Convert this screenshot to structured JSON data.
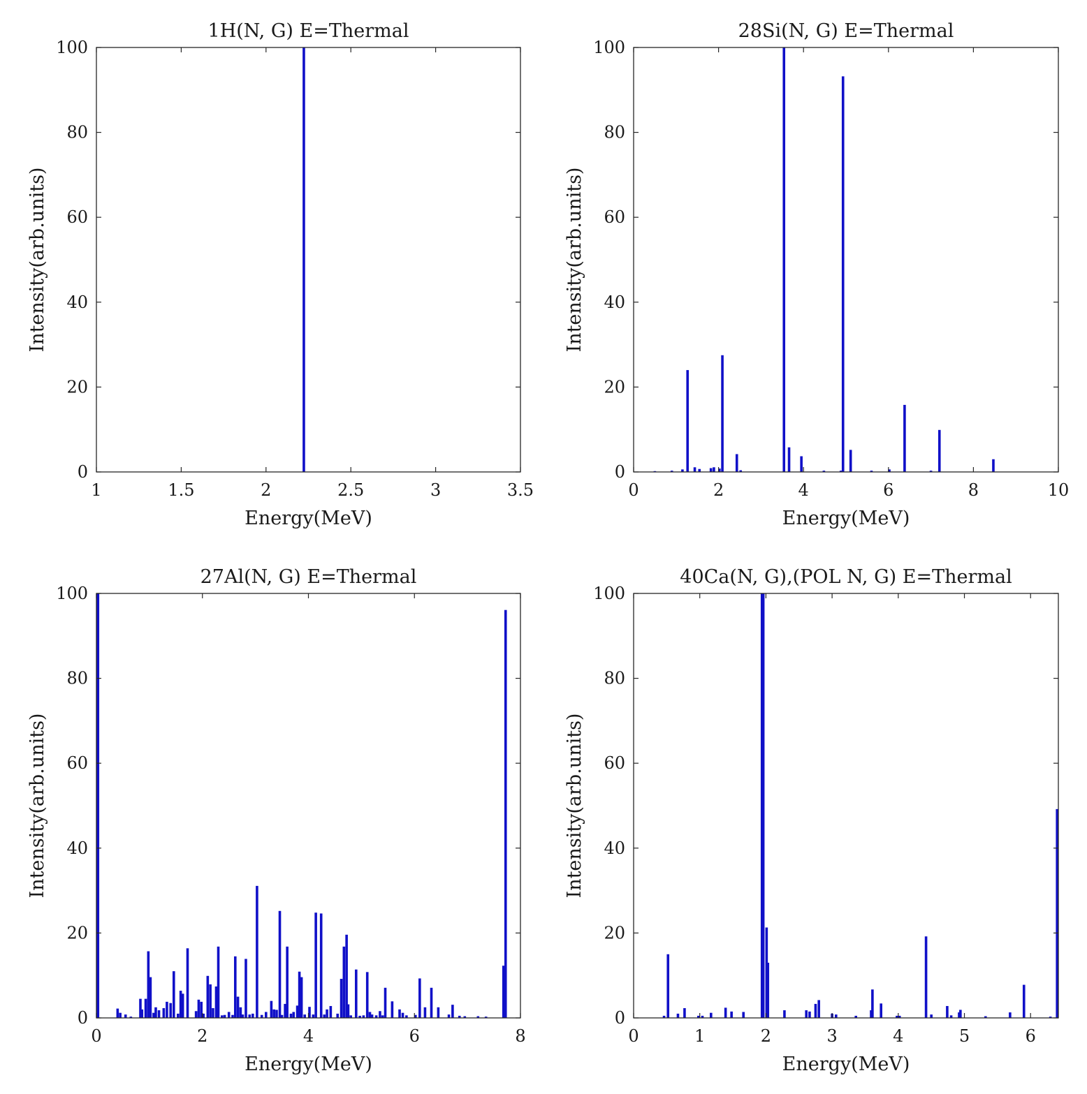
{
  "colors": {
    "bar": "#1010c8",
    "axis": "#262626"
  },
  "chart_data": [
    {
      "type": "bar",
      "title": "1H(N, G) E=Thermal",
      "xlabel": "Energy(MeV)",
      "ylabel": "Intensity(arb.units)",
      "xlim": [
        1,
        3.5
      ],
      "ylim": [
        0,
        100
      ],
      "xticks": [
        "1",
        "1.5",
        "2",
        "2.5",
        "3",
        "3.5"
      ],
      "yticks": [
        "0",
        "20",
        "40",
        "60",
        "80",
        "100"
      ],
      "x": [
        2.223
      ],
      "values": [
        100
      ]
    },
    {
      "type": "bar",
      "title": "28Si(N, G) E=Thermal",
      "xlabel": "Energy(MeV)",
      "ylabel": "Intensity(arb.units)",
      "xlim": [
        0,
        10
      ],
      "ylim": [
        0,
        100
      ],
      "xticks": [
        "0",
        "2",
        "4",
        "6",
        "8",
        "10"
      ],
      "yticks": [
        "0",
        "20",
        "40",
        "60",
        "80",
        "100"
      ],
      "x": [
        0.5,
        0.9,
        1.15,
        1.27,
        1.44,
        1.55,
        1.82,
        1.89,
        2.02,
        2.09,
        2.43,
        2.52,
        3.54,
        3.66,
        3.95,
        4.48,
        4.88,
        4.93,
        5.11,
        5.6,
        6.02,
        6.38,
        7.0,
        7.2,
        8.47
      ],
      "values": [
        0.2,
        0.3,
        0.6,
        24,
        1.1,
        0.7,
        0.9,
        1.1,
        0.8,
        27.5,
        4.2,
        0.4,
        100,
        5.8,
        3.7,
        0.3,
        0.3,
        93.2,
        5.2,
        0.3,
        0.6,
        15.8,
        0.3,
        9.9,
        3.0
      ]
    },
    {
      "type": "bar",
      "title": "27Al(N, G) E=Thermal",
      "xlabel": "Energy(MeV)",
      "ylabel": "Intensity(arb.units)",
      "xlim": [
        0,
        8
      ],
      "ylim": [
        0,
        100
      ],
      "xticks": [
        "0",
        "2",
        "4",
        "6",
        "8"
      ],
      "yticks": [
        "0",
        "20",
        "40",
        "60",
        "80",
        "100"
      ],
      "x": [
        0.03,
        0.4,
        0.45,
        0.55,
        0.65,
        0.83,
        0.86,
        0.93,
        0.98,
        1.02,
        1.08,
        1.12,
        1.18,
        1.27,
        1.33,
        1.4,
        1.46,
        1.54,
        1.59,
        1.63,
        1.72,
        1.88,
        1.93,
        1.98,
        2.02,
        2.1,
        2.15,
        2.2,
        2.26,
        2.3,
        2.37,
        2.42,
        2.5,
        2.57,
        2.62,
        2.67,
        2.72,
        2.76,
        2.82,
        2.89,
        2.95,
        3.03,
        3.12,
        3.2,
        3.3,
        3.35,
        3.4,
        3.46,
        3.5,
        3.56,
        3.6,
        3.67,
        3.72,
        3.79,
        3.83,
        3.87,
        3.93,
        4.02,
        4.09,
        4.14,
        4.24,
        4.3,
        4.35,
        4.42,
        4.55,
        4.62,
        4.67,
        4.72,
        4.75,
        4.8,
        4.9,
        4.97,
        5.04,
        5.11,
        5.16,
        5.2,
        5.28,
        5.35,
        5.4,
        5.45,
        5.58,
        5.72,
        5.78,
        5.85,
        6.02,
        6.1,
        6.2,
        6.32,
        6.45,
        6.65,
        6.72,
        6.85,
        6.95,
        7.2,
        7.35,
        7.68,
        7.72
      ],
      "values": [
        100,
        2.2,
        1.2,
        0.8,
        0.3,
        4.5,
        2.0,
        4.5,
        15.7,
        9.6,
        1.2,
        2.5,
        1.8,
        2.3,
        3.8,
        3.5,
        11.0,
        1.0,
        6.4,
        5.7,
        16.4,
        1.6,
        4.3,
        3.8,
        1.0,
        9.9,
        7.9,
        2.3,
        7.4,
        16.8,
        0.6,
        0.7,
        1.4,
        0.7,
        14.5,
        5.0,
        2.5,
        0.8,
        13.9,
        0.8,
        1.0,
        31.1,
        0.7,
        1.4,
        4.0,
        2.0,
        1.9,
        25.2,
        0.7,
        3.3,
        16.8,
        1.0,
        1.4,
        2.9,
        10.9,
        9.6,
        0.8,
        2.6,
        0.8,
        24.8,
        24.6,
        0.8,
        2.0,
        2.8,
        1.0,
        9.2,
        16.8,
        19.6,
        3.2,
        0.6,
        11.4,
        0.5,
        0.6,
        10.8,
        1.4,
        0.8,
        0.6,
        1.6,
        0.6,
        7.1,
        3.9,
        2.0,
        1.2,
        0.6,
        0.7,
        9.3,
        2.5,
        7.1,
        2.5,
        0.8,
        3.1,
        0.5,
        0.4,
        0.4,
        0.3,
        12.3,
        96.1
      ]
    },
    {
      "type": "bar",
      "title": "40Ca(N, G),(POL N, G) E=Thermal",
      "xlabel": "Energy(MeV)",
      "ylabel": "Intensity(arb.units)",
      "xlim": [
        0,
        6.42
      ],
      "ylim": [
        0,
        100
      ],
      "xticks": [
        "0",
        "1",
        "2",
        "3",
        "4",
        "5",
        "6"
      ],
      "yticks": [
        "0",
        "20",
        "40",
        "60",
        "80",
        "100"
      ],
      "x": [
        0.46,
        0.52,
        0.67,
        0.77,
        0.98,
        1.04,
        1.17,
        1.39,
        1.48,
        1.66,
        1.94,
        1.96,
        2.01,
        2.03,
        2.28,
        2.61,
        2.66,
        2.75,
        2.8,
        3.0,
        3.06,
        3.36,
        3.59,
        3.61,
        3.74,
        3.98,
        4.02,
        4.42,
        4.5,
        4.74,
        4.8,
        4.92,
        4.94,
        5.32,
        5.69,
        5.9,
        6.3,
        6.42
      ],
      "values": [
        0.5,
        15.0,
        1.0,
        2.3,
        0.5,
        0.5,
        1.2,
        2.4,
        1.5,
        1.4,
        100,
        100,
        21.3,
        13.0,
        1.8,
        1.8,
        1.5,
        3.3,
        4.2,
        1.0,
        0.8,
        0.5,
        1.8,
        6.7,
        3.4,
        0.5,
        0.5,
        19.2,
        0.8,
        2.8,
        0.6,
        1.3,
        1.9,
        0.4,
        1.3,
        7.8,
        0.3,
        49.2
      ]
    }
  ]
}
